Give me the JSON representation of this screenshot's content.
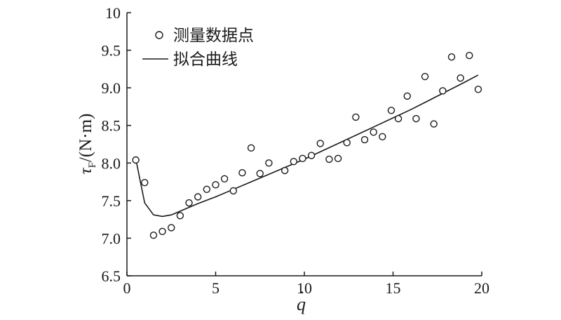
{
  "chart_data": {
    "type": "scatter",
    "xlabel_main": "q",
    "xlabel_mark": "·",
    "ylabel_main": "τ",
    "ylabel_sub": "F",
    "ylabel_unit": "/(N·m)",
    "xlim": [
      0,
      20
    ],
    "ylim": [
      6.5,
      10
    ],
    "x_ticks": [
      0,
      5,
      10,
      15,
      20
    ],
    "x_tick_labels": [
      "0",
      "5",
      "10",
      "15",
      "20"
    ],
    "y_ticks": [
      6.5,
      7.0,
      7.5,
      8.0,
      8.5,
      9.0,
      9.5,
      10
    ],
    "y_tick_labels": [
      "6.5",
      "7.0",
      "7.5",
      "8.0",
      "8.5",
      "9.0",
      "9.5",
      "10"
    ],
    "grid": false,
    "legend_position": "top-left",
    "series": [
      {
        "name": "测量数据点",
        "marker": "circle",
        "points": [
          [
            0.5,
            8.04
          ],
          [
            1.0,
            7.74
          ],
          [
            1.5,
            7.04
          ],
          [
            2.0,
            7.09
          ],
          [
            2.5,
            7.14
          ],
          [
            3.0,
            7.3
          ],
          [
            3.5,
            7.47
          ],
          [
            4.0,
            7.55
          ],
          [
            4.5,
            7.65
          ],
          [
            5.0,
            7.71
          ],
          [
            5.5,
            7.79
          ],
          [
            6.0,
            7.63
          ],
          [
            6.5,
            7.87
          ],
          [
            7.0,
            8.2
          ],
          [
            7.5,
            7.86
          ],
          [
            8.0,
            8.0
          ],
          [
            8.9,
            7.9
          ],
          [
            9.4,
            8.02
          ],
          [
            9.9,
            8.06
          ],
          [
            10.4,
            8.1
          ],
          [
            10.9,
            8.26
          ],
          [
            11.4,
            8.05
          ],
          [
            11.9,
            8.06
          ],
          [
            12.4,
            8.27
          ],
          [
            12.9,
            8.61
          ],
          [
            13.4,
            8.31
          ],
          [
            13.9,
            8.41
          ],
          [
            14.4,
            8.35
          ],
          [
            14.9,
            8.7
          ],
          [
            15.3,
            8.59
          ],
          [
            15.8,
            8.89
          ],
          [
            16.3,
            8.59
          ],
          [
            16.8,
            9.15
          ],
          [
            17.3,
            8.52
          ],
          [
            17.8,
            8.96
          ],
          [
            18.3,
            9.41
          ],
          [
            18.8,
            9.13
          ],
          [
            19.3,
            9.43
          ],
          [
            19.8,
            8.98
          ]
        ]
      },
      {
        "name": "拟合曲线",
        "line": true,
        "points": [
          [
            0.5,
            8.05
          ],
          [
            1.0,
            7.47
          ],
          [
            1.5,
            7.31
          ],
          [
            2.0,
            7.29
          ],
          [
            2.5,
            7.31
          ],
          [
            3.0,
            7.36
          ],
          [
            4.0,
            7.46
          ],
          [
            5.0,
            7.55
          ],
          [
            6.0,
            7.65
          ],
          [
            7.0,
            7.75
          ],
          [
            8.0,
            7.85
          ],
          [
            9.0,
            7.95
          ],
          [
            10.0,
            8.05
          ],
          [
            11.0,
            8.16
          ],
          [
            12.0,
            8.27
          ],
          [
            13.0,
            8.38
          ],
          [
            14.0,
            8.49
          ],
          [
            15.0,
            8.6
          ],
          [
            16.0,
            8.71
          ],
          [
            17.0,
            8.83
          ],
          [
            18.0,
            8.95
          ],
          [
            19.0,
            9.07
          ],
          [
            19.8,
            9.17
          ]
        ]
      }
    ]
  }
}
